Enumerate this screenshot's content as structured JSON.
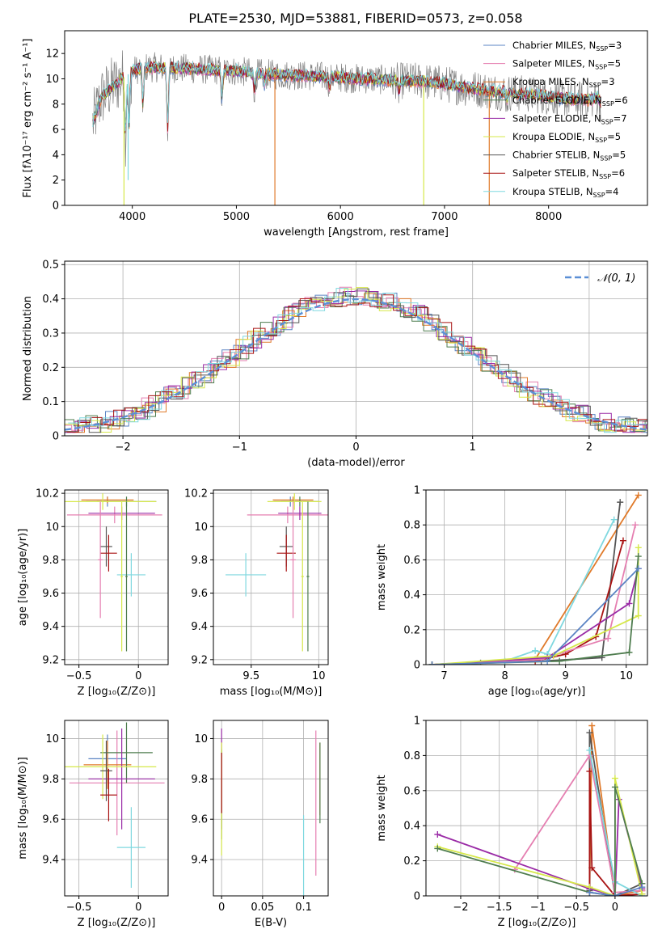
{
  "title": "PLATE=2530, MJD=53881, FIBERID=0573, z=0.058",
  "models": [
    {
      "name": "Chabrier MILES",
      "nssp": "3",
      "color": "#5b84c4"
    },
    {
      "name": "Salpeter MILES",
      "nssp": "5",
      "color": "#e57fb1"
    },
    {
      "name": "Kroupa MILES",
      "nssp": "3",
      "color": "#e07a2a"
    },
    {
      "name": "Chabrier ELODIE",
      "nssp": "6",
      "color": "#4f7d4f"
    },
    {
      "name": "Salpeter ELODIE",
      "nssp": "7",
      "color": "#9a2ba6"
    },
    {
      "name": "Kroupa ELODIE",
      "nssp": "5",
      "color": "#d6e84a"
    },
    {
      "name": "Chabrier STELIB",
      "nssp": "5",
      "color": "#555555"
    },
    {
      "name": "Salpeter STELIB",
      "nssp": "6",
      "color": "#a81212"
    },
    {
      "name": "Kroupa STELIB",
      "nssp": "4",
      "color": "#7fd8df"
    }
  ],
  "observed_color": "#808080",
  "chart_data": [
    {
      "id": "spectrum",
      "type": "line",
      "xlabel": "wavelength [Angstrom, rest frame]",
      "ylabel": "Flux [fλ10⁻¹⁷ erg cm⁻² s⁻¹ A⁻¹]",
      "xlim": [
        3350,
        8950
      ],
      "ylim": [
        0,
        13.8
      ],
      "xticks": [
        4000,
        5000,
        6000,
        7000,
        8000
      ],
      "yticks": [
        0,
        2,
        4,
        6,
        8,
        10,
        12
      ],
      "grid": false,
      "legend": "top-right",
      "continuum": [
        [
          3620,
          6.5
        ],
        [
          3700,
          8.5
        ],
        [
          3800,
          9.3
        ],
        [
          3900,
          10.0
        ],
        [
          4000,
          10.6
        ],
        [
          4100,
          10.9
        ],
        [
          4300,
          10.9
        ],
        [
          4500,
          10.8
        ],
        [
          4800,
          10.7
        ],
        [
          5000,
          10.6
        ],
        [
          5200,
          10.4
        ],
        [
          5500,
          10.3
        ],
        [
          5800,
          10.2
        ],
        [
          6000,
          10.1
        ],
        [
          6200,
          10.0
        ],
        [
          6500,
          9.9
        ],
        [
          6800,
          9.8
        ],
        [
          7000,
          9.6
        ],
        [
          7200,
          9.3
        ],
        [
          7500,
          9.0
        ],
        [
          7800,
          8.8
        ],
        [
          8000,
          8.6
        ],
        [
          8200,
          8.4
        ],
        [
          8400,
          8.3
        ],
        [
          8500,
          8.6
        ]
      ],
      "absorption_lines": [
        [
          3934,
          5.5
        ],
        [
          3969,
          6.5
        ],
        [
          4102,
          8.0
        ],
        [
          4340,
          6.0
        ],
        [
          4861,
          8.5
        ],
        [
          5175,
          9.0
        ],
        [
          5270,
          9.6
        ],
        [
          5895,
          9.3
        ],
        [
          6563,
          9.0
        ],
        [
          7600,
          8.4
        ],
        [
          8498,
          8.0
        ],
        [
          8542,
          7.5
        ]
      ],
      "model_dips": [
        {
          "model": 5,
          "x": 3920,
          "y": 0.0
        },
        {
          "model": 2,
          "x": 5370,
          "y": 0.0
        },
        {
          "model": 5,
          "x": 6800,
          "y": 0.0
        },
        {
          "model": 2,
          "x": 7430,
          "y": 0.0
        },
        {
          "model": 8,
          "x": 3960,
          "y": 2.0
        }
      ]
    },
    {
      "id": "residual-histogram",
      "type": "histogram",
      "xlabel": "(data-model)/error",
      "ylabel": "Normed distribution",
      "xlim": [
        -2.5,
        2.5
      ],
      "ylim": [
        0,
        0.51
      ],
      "xticks": [
        -2,
        -1,
        0,
        1,
        2
      ],
      "yticks": [
        0,
        0.1,
        0.2,
        0.3,
        0.4,
        0.5
      ],
      "grid": true,
      "legend": "top-right",
      "reference_label": "𝒩(0, 1)",
      "reference_color": "#5b8fd6",
      "bin_width": 0.1
    },
    {
      "id": "age-vs-metallicity",
      "type": "scatter",
      "xlabel": "Z [log₁₀(Z/Z⊙)]",
      "ylabel": "age  [log₁₀(age/yr)]",
      "xlim": [
        -0.62,
        0.25
      ],
      "ylim": [
        9.17,
        10.22
      ],
      "xticks": [
        -0.5,
        0.0
      ],
      "yticks": [
        9.2,
        9.4,
        9.6,
        9.8,
        10.0,
        10.2
      ],
      "grid": true,
      "points": [
        {
          "model": 0,
          "x": -0.26,
          "y": 10.15,
          "xerr": 0.18,
          "yerr": 0.03
        },
        {
          "model": 1,
          "x": -0.2,
          "y": 10.07,
          "xerr": 0.4,
          "yerr": 0.05
        },
        {
          "model": 2,
          "x": -0.26,
          "y": 10.16,
          "xerr": 0.22,
          "yerr": 0.02
        },
        {
          "model": 3,
          "x": -0.1,
          "y": 10.15,
          "xerr": 0.25,
          "yerr": 0.03
        },
        {
          "model": 4,
          "x": -0.14,
          "y": 10.08,
          "xerr": 0.28,
          "yerr": 0.04
        },
        {
          "model": 5,
          "x": -0.3,
          "y": 10.15,
          "xerr": 0.45,
          "yerr": 0.05
        },
        {
          "model": 6,
          "x": -0.27,
          "y": 9.88,
          "xerr": 0.05,
          "yerr": 0.12
        },
        {
          "model": 7,
          "x": -0.25,
          "y": 9.84,
          "xerr": 0.07,
          "yerr": 0.11
        },
        {
          "model": 8,
          "x": -0.06,
          "y": 9.71,
          "xerr": 0.12,
          "yerr": 0.13
        },
        {
          "model": 1,
          "x": -0.32,
          "y": 9.8,
          "xerr": 0.02,
          "yerr": 0.35
        },
        {
          "model": 5,
          "x": -0.14,
          "y": 9.7,
          "xerr": 0.01,
          "yerr": 0.45
        },
        {
          "model": 3,
          "x": -0.1,
          "y": 9.7,
          "xerr": 0.01,
          "yerr": 0.45
        }
      ]
    },
    {
      "id": "age-vs-mass",
      "type": "scatter",
      "xlabel": "mass [log₁₀(M/M⊙)]",
      "ylabel": "",
      "xlim": [
        9.22,
        10.07
      ],
      "ylim": [
        9.17,
        10.22
      ],
      "xticks": [
        9.5,
        10.0
      ],
      "yticks": [
        9.2,
        9.4,
        9.6,
        9.8,
        10.0,
        10.2
      ],
      "grid": true,
      "points": [
        {
          "model": 0,
          "x": 9.79,
          "y": 10.15,
          "xerr": 0.12,
          "yerr": 0.03
        },
        {
          "model": 1,
          "x": 9.77,
          "y": 10.07,
          "xerr": 0.3,
          "yerr": 0.05
        },
        {
          "model": 2,
          "x": 9.81,
          "y": 10.16,
          "xerr": 0.15,
          "yerr": 0.02
        },
        {
          "model": 3,
          "x": 9.86,
          "y": 10.15,
          "xerr": 0.14,
          "yerr": 0.03
        },
        {
          "model": 4,
          "x": 9.86,
          "y": 10.08,
          "xerr": 0.16,
          "yerr": 0.04
        },
        {
          "model": 5,
          "x": 9.82,
          "y": 10.15,
          "xerr": 0.2,
          "yerr": 0.05
        },
        {
          "model": 6,
          "x": 9.76,
          "y": 9.88,
          "xerr": 0.05,
          "yerr": 0.12
        },
        {
          "model": 7,
          "x": 9.76,
          "y": 9.84,
          "xerr": 0.07,
          "yerr": 0.11
        },
        {
          "model": 8,
          "x": 9.46,
          "y": 9.71,
          "xerr": 0.15,
          "yerr": 0.13
        },
        {
          "model": 1,
          "x": 9.81,
          "y": 9.8,
          "xerr": 0.02,
          "yerr": 0.35
        },
        {
          "model": 5,
          "x": 9.88,
          "y": 9.7,
          "xerr": 0.01,
          "yerr": 0.45
        },
        {
          "model": 3,
          "x": 9.92,
          "y": 9.7,
          "xerr": 0.01,
          "yerr": 0.45
        }
      ]
    },
    {
      "id": "mass-weight-vs-age",
      "type": "line",
      "xlabel": "age  [log₁₀(age/yr)]",
      "ylabel": "mass weight",
      "xlim": [
        6.7,
        10.35
      ],
      "ylim": [
        0,
        1.0
      ],
      "xticks": [
        7,
        8,
        9,
        10
      ],
      "yticks": [
        0.0,
        0.2,
        0.4,
        0.6,
        0.8,
        1.0
      ],
      "grid": true,
      "series": [
        {
          "model": 2,
          "x": [
            6.8,
            8.5,
            10.2
          ],
          "y": [
            0.0,
            0.03,
            0.97
          ]
        },
        {
          "model": 8,
          "x": [
            6.8,
            8.0,
            8.5,
            8.7,
            9.8
          ],
          "y": [
            0.0,
            0.02,
            0.08,
            0.06,
            0.83
          ]
        },
        {
          "model": 6,
          "x": [
            6.8,
            7.6,
            8.6,
            9.6,
            9.9
          ],
          "y": [
            0.0,
            0.01,
            0.02,
            0.04,
            0.93
          ]
        },
        {
          "model": 7,
          "x": [
            6.8,
            8.5,
            9.0,
            9.5,
            9.95
          ],
          "y": [
            0.0,
            0.02,
            0.06,
            0.16,
            0.71
          ]
        },
        {
          "model": 1,
          "x": [
            6.8,
            8.6,
            9.7,
            10.15
          ],
          "y": [
            0.0,
            0.03,
            0.15,
            0.8
          ]
        },
        {
          "model": 4,
          "x": [
            6.8,
            8.7,
            10.05,
            10.2
          ],
          "y": [
            0.0,
            0.04,
            0.35,
            0.55
          ]
        },
        {
          "model": 5,
          "x": [
            6.8,
            8.8,
            10.2,
            10.2
          ],
          "y": [
            0.0,
            0.05,
            0.28,
            0.67
          ]
        },
        {
          "model": 3,
          "x": [
            6.8,
            8.9,
            10.05,
            10.2
          ],
          "y": [
            0.0,
            0.02,
            0.07,
            0.62
          ]
        },
        {
          "model": 0,
          "x": [
            6.8,
            8.7,
            10.2
          ],
          "y": [
            0.0,
            0.02,
            0.55
          ]
        }
      ]
    },
    {
      "id": "mass-vs-metallicity",
      "type": "scatter",
      "xlabel": "Z [log₁₀(Z/Z⊙)]",
      "ylabel": "mass [log₁₀(M/M⊙)]",
      "xlim": [
        -0.62,
        0.25
      ],
      "ylim": [
        9.22,
        10.09
      ],
      "xticks": [
        -0.5,
        0.0
      ],
      "yticks": [
        9.4,
        9.6,
        9.8,
        10.0
      ],
      "grid": true,
      "points": [
        {
          "model": 0,
          "x": -0.26,
          "y": 9.9,
          "xerr": 0.16,
          "yerr": 0.12
        },
        {
          "model": 1,
          "x": -0.18,
          "y": 9.78,
          "xerr": 0.4,
          "yerr": 0.26
        },
        {
          "model": 2,
          "x": -0.26,
          "y": 9.87,
          "xerr": 0.2,
          "yerr": 0.12
        },
        {
          "model": 3,
          "x": -0.1,
          "y": 9.93,
          "xerr": 0.22,
          "yerr": 0.15
        },
        {
          "model": 4,
          "x": -0.14,
          "y": 9.8,
          "xerr": 0.28,
          "yerr": 0.25
        },
        {
          "model": 5,
          "x": -0.3,
          "y": 9.86,
          "xerr": 0.45,
          "yerr": 0.16
        },
        {
          "model": 6,
          "x": -0.27,
          "y": 9.84,
          "xerr": 0.05,
          "yerr": 0.15
        },
        {
          "model": 7,
          "x": -0.25,
          "y": 9.72,
          "xerr": 0.07,
          "yerr": 0.13
        },
        {
          "model": 8,
          "x": -0.06,
          "y": 9.46,
          "xerr": 0.12,
          "yerr": 0.2
        }
      ]
    },
    {
      "id": "mass-vs-ebv",
      "type": "scatter",
      "xlabel": "E(B-V)",
      "ylabel": "",
      "xlim": [
        -0.01,
        0.13
      ],
      "ylim": [
        9.22,
        10.09
      ],
      "xticks": [
        0.0,
        0.05,
        0.1
      ],
      "yticks": [
        9.4,
        9.6,
        9.8,
        10.0
      ],
      "grid": true,
      "points": [
        {
          "model": 0,
          "x": 0.0,
          "y": 9.75,
          "xerr": 0,
          "yerr": 0.2
        },
        {
          "model": 4,
          "x": 0.0,
          "y": 9.8,
          "xerr": 0,
          "yerr": 0.25
        },
        {
          "model": 3,
          "x": 0.0,
          "y": 9.72,
          "xerr": 0,
          "yerr": 0.22
        },
        {
          "model": 5,
          "x": 0.0,
          "y": 9.7,
          "xerr": 0,
          "yerr": 0.28
        },
        {
          "model": 7,
          "x": 0.0,
          "y": 9.78,
          "xerr": 0,
          "yerr": 0.15
        },
        {
          "model": 8,
          "x": 0.1,
          "y": 9.42,
          "xerr": 0,
          "yerr": 0.2
        },
        {
          "model": 1,
          "x": 0.115,
          "y": 9.68,
          "xerr": 0,
          "yerr": 0.36
        },
        {
          "model": 2,
          "x": 0.12,
          "y": 9.8,
          "xerr": 0,
          "yerr": 0.18
        },
        {
          "model": 3,
          "x": 0.12,
          "y": 9.78,
          "xerr": 0,
          "yerr": 0.2
        }
      ]
    },
    {
      "id": "mass-weight-vs-metallicity",
      "type": "line",
      "xlabel": "Z [log₁₀(Z/Z⊙)]",
      "ylabel": "mass weight",
      "xlim": [
        -2.45,
        0.42
      ],
      "ylim": [
        0,
        1.0
      ],
      "xticks": [
        -2.0,
        -1.5,
        -1.0,
        -0.5,
        0.0
      ],
      "yticks": [
        0.0,
        0.2,
        0.4,
        0.6,
        0.8,
        1.0
      ],
      "grid": true,
      "series": [
        {
          "model": 2,
          "x": [
            -0.33,
            -0.3,
            0.0,
            0.35
          ],
          "y": [
            0.02,
            0.97,
            0.0,
            0.03
          ]
        },
        {
          "model": 6,
          "x": [
            -0.33,
            -0.33,
            0.0,
            0.35
          ],
          "y": [
            0.03,
            0.93,
            0.0,
            0.07
          ]
        },
        {
          "model": 7,
          "x": [
            -0.33,
            -0.33,
            -0.3,
            0.0,
            0.35
          ],
          "y": [
            0.02,
            0.71,
            0.16,
            0.0,
            0.01
          ]
        },
        {
          "model": 1,
          "x": [
            -1.3,
            -0.33,
            0.0,
            0.35
          ],
          "y": [
            0.15,
            0.8,
            0.02,
            0.03
          ]
        },
        {
          "model": 8,
          "x": [
            -0.33,
            0.0,
            0.35
          ],
          "y": [
            0.83,
            0.08,
            0.0
          ]
        },
        {
          "model": 4,
          "x": [
            -2.3,
            -0.33,
            0.0,
            0.05,
            0.35
          ],
          "y": [
            0.35,
            0.04,
            0.0,
            0.55,
            0.04
          ]
        },
        {
          "model": 5,
          "x": [
            -2.3,
            -0.33,
            0.0,
            0.0,
            0.35
          ],
          "y": [
            0.28,
            0.05,
            0.0,
            0.67,
            0.01
          ]
        },
        {
          "model": 3,
          "x": [
            -2.3,
            -0.33,
            0.0,
            0.0,
            0.35
          ],
          "y": [
            0.27,
            0.02,
            0.0,
            0.62,
            0.07
          ]
        },
        {
          "model": 0,
          "x": [
            -0.33,
            0.0,
            0.35
          ],
          "y": [
            0.02,
            0.0,
            0.05
          ]
        }
      ]
    }
  ]
}
